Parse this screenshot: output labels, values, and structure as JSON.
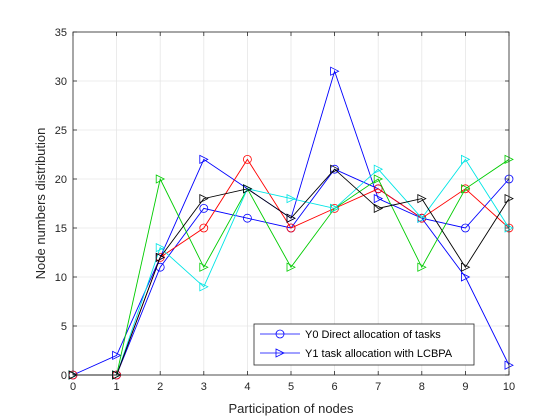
{
  "chart_data": {
    "type": "line",
    "xlabel": "Participation of nodes",
    "ylabel": "Node numbers distribution",
    "xlim": [
      0,
      10
    ],
    "ylim": [
      0,
      35
    ],
    "xticks": [
      0,
      1,
      2,
      3,
      4,
      5,
      6,
      7,
      8,
      9,
      10
    ],
    "yticks": [
      0,
      5,
      10,
      15,
      20,
      25,
      30,
      35
    ],
    "grid": true,
    "legend_position": "bottom-right",
    "x": [
      0,
      1,
      2,
      3,
      4,
      5,
      6,
      7,
      8,
      9,
      10
    ],
    "series": [
      {
        "name": "Y0 Direct allocation of tasks",
        "color": "#0000ff",
        "marker": "circle",
        "values": [
          0,
          0,
          11,
          17,
          16,
          15,
          21,
          19,
          16,
          15,
          20
        ]
      },
      {
        "name": "Y1 task allocation with LCBPA",
        "color": "#0000ff",
        "marker": "triangle-right",
        "values": [
          0,
          2,
          12,
          22,
          19,
          16,
          31,
          18,
          16,
          10,
          1
        ]
      },
      {
        "color": "#ff0000",
        "marker": "circle",
        "values": [
          0,
          0,
          12,
          15,
          22,
          15,
          17,
          19,
          16,
          19,
          15
        ]
      },
      {
        "color": "#00cc00",
        "marker": "triangle-right",
        "values": [
          0,
          0,
          20,
          11,
          19,
          11,
          17,
          20,
          11,
          19,
          22
        ]
      },
      {
        "color": "#00e5e5",
        "marker": "triangle-right",
        "values": [
          0,
          0,
          13,
          9,
          19,
          18,
          17,
          21,
          16,
          22,
          15
        ]
      },
      {
        "color": "#000000",
        "marker": "triangle-right",
        "values": [
          0,
          0,
          12,
          18,
          19,
          16,
          21,
          17,
          18,
          11,
          18
        ]
      }
    ]
  }
}
